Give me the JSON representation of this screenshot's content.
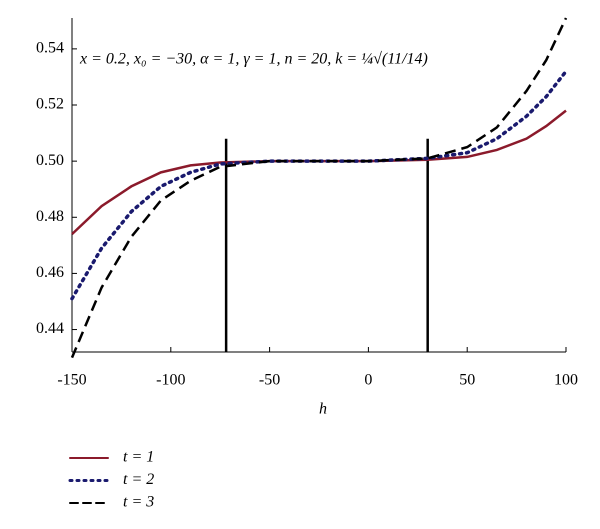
{
  "chart_data": {
    "type": "line",
    "x_label": "h",
    "annotation": "x = 0.2, x₀ = −30, α = 1, γ = 1, n = 20, k = ¼√(11/14)",
    "x": [
      -150,
      -135,
      -120,
      -105,
      -90,
      -75,
      -50,
      0,
      30,
      50,
      65,
      80,
      90,
      100
    ],
    "series": [
      {
        "name": "t = 1",
        "color": "#8b1a2b",
        "dash": "solid",
        "values": [
          0.474,
          0.484,
          0.491,
          0.496,
          0.4985,
          0.4995,
          0.5,
          0.5,
          0.5005,
          0.5015,
          0.504,
          0.508,
          0.5125,
          0.518
        ]
      },
      {
        "name": "t = 2",
        "color": "#1a1a6e",
        "dash": "dotted",
        "values": [
          0.451,
          0.469,
          0.482,
          0.491,
          0.496,
          0.499,
          0.5,
          0.5,
          0.501,
          0.503,
          0.508,
          0.516,
          0.523,
          0.532
        ]
      },
      {
        "name": "t = 3",
        "color": "#000000",
        "dash": "dashed",
        "values": [
          0.43,
          0.455,
          0.473,
          0.486,
          0.493,
          0.498,
          0.5,
          0.5,
          0.501,
          0.505,
          0.512,
          0.525,
          0.536,
          0.551
        ]
      }
    ],
    "vlines": [
      {
        "x": -72,
        "y": [
          0.432,
          0.508
        ]
      },
      {
        "x": 30,
        "y": [
          0.432,
          0.508
        ]
      }
    ],
    "xlim": [
      -150,
      100
    ],
    "xticks": [
      -150,
      -100,
      -50,
      0,
      50,
      100
    ],
    "ylim": [
      0.432,
      0.551
    ],
    "yticks": [
      {
        "value": 0.44,
        "label": "0.44"
      },
      {
        "value": 0.46,
        "label": "0.46"
      },
      {
        "value": 0.48,
        "label": "0.48"
      },
      {
        "value": 0.5,
        "label": "0.50"
      },
      {
        "value": 0.52,
        "label": "0.52"
      },
      {
        "value": 0.54,
        "label": "0.54"
      }
    ],
    "grid": false
  }
}
